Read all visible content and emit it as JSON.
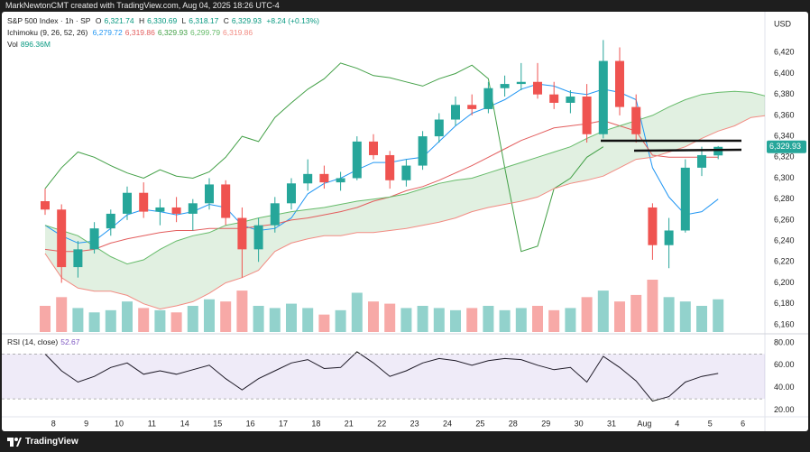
{
  "header": {
    "credit": "MarkNewtonCMT created with TradingView.com, Aug 04, 2025 18:26 UTC-4"
  },
  "footer": {
    "brand": "TradingView"
  },
  "chart_data": [
    {
      "type": "candlestick",
      "title": "S&P 500 Index · 1h · SP",
      "currency": "USD",
      "legend": {
        "o": "O",
        "open": "6,321.74",
        "h": "H",
        "high": "6,330.69",
        "l": "L",
        "low": "6,318.17",
        "c": "C",
        "close": "6,329.93",
        "change": "+8.24 (+0.13%)"
      },
      "indicator": "Ichimoku (9, 26, 52, 26)",
      "up_color": "#26a69a",
      "down_color": "#ef5350",
      "ylim": [
        6153,
        6453
      ],
      "yticks": [
        {
          "value": 6160,
          "label": "6,160"
        },
        {
          "value": 6180,
          "label": "6,180"
        },
        {
          "value": 6200,
          "label": "6,200"
        },
        {
          "value": 6220,
          "label": "6,220"
        },
        {
          "value": 6240,
          "label": "6,240"
        },
        {
          "value": 6260,
          "label": "6,260"
        },
        {
          "value": 6280,
          "label": "6,280"
        },
        {
          "value": 6300,
          "label": "6,300"
        },
        {
          "value": 6320,
          "label": "6,320"
        },
        {
          "value": 6340,
          "label": "6,340"
        },
        {
          "value": 6360,
          "label": "6,360"
        },
        {
          "value": 6380,
          "label": "6,380"
        },
        {
          "value": 6400,
          "label": "6,400"
        },
        {
          "value": 6420,
          "label": "6,420"
        }
      ],
      "open": [
        6278,
        6270,
        6215,
        6232,
        6252,
        6266,
        6286,
        6268,
        6272,
        6266,
        6276,
        6294,
        6262,
        6232,
        6255,
        6276,
        6295,
        6304,
        6296,
        6300,
        6335,
        6322,
        6298,
        6312,
        6340,
        6356,
        6370,
        6366,
        6386,
        6390,
        6392,
        6380,
        6372,
        6378,
        6342,
        6412,
        6368,
        6272,
        6236,
        6250,
        6310,
        6321.74,
        null,
        null,
        null
      ],
      "high": [
        6290,
        6275,
        6240,
        6258,
        6270,
        6292,
        6296,
        6280,
        6282,
        6280,
        6300,
        6298,
        6272,
        6262,
        6282,
        6300,
        6318,
        6312,
        6306,
        6340,
        6342,
        6326,
        6318,
        6345,
        6362,
        6378,
        6380,
        6392,
        6398,
        6410,
        6410,
        6392,
        6384,
        6390,
        6432,
        6425,
        6380,
        6276,
        6262,
        6318,
        6330,
        6330.69,
        null,
        null,
        null
      ],
      "low": [
        6265,
        6200,
        6205,
        6228,
        6245,
        6260,
        6262,
        6255,
        6258,
        6250,
        6270,
        6255,
        6205,
        6220,
        6248,
        6270,
        6288,
        6290,
        6288,
        6298,
        6318,
        6290,
        6292,
        6308,
        6334,
        6350,
        6360,
        6362,
        6378,
        6384,
        6376,
        6366,
        6362,
        6334,
        6338,
        6360,
        6334,
        6222,
        6214,
        6248,
        6302,
        6318.17,
        null,
        null,
        null
      ],
      "close": [
        6270,
        6215,
        6232,
        6252,
        6266,
        6286,
        6268,
        6272,
        6266,
        6276,
        6294,
        6262,
        6232,
        6255,
        6276,
        6295,
        6304,
        6296,
        6300,
        6335,
        6322,
        6298,
        6312,
        6340,
        6356,
        6370,
        6366,
        6386,
        6390,
        6392,
        6380,
        6372,
        6378,
        6342,
        6412,
        6368,
        6342,
        6236,
        6250,
        6310,
        6322,
        6329.93,
        null,
        null,
        null
      ],
      "volume": {
        "name": "Vol",
        "value_label": "896.36M",
        "values": [
          60,
          80,
          55,
          45,
          50,
          70,
          55,
          50,
          45,
          60,
          75,
          70,
          95,
          60,
          55,
          65,
          55,
          40,
          50,
          90,
          70,
          65,
          55,
          60,
          55,
          50,
          55,
          60,
          50,
          55,
          60,
          50,
          55,
          80,
          95,
          70,
          85,
          120,
          80,
          70,
          60,
          75,
          null,
          null,
          null
        ]
      },
      "cloud_color": "rgba(67,160,71,0.16)",
      "series": [
        {
          "color": "#2196f3",
          "value_label": "6,279.72",
          "values": [
            6255,
            6245,
            6238,
            6240,
            6252,
            6265,
            6270,
            6268,
            6265,
            6268,
            6275,
            6272,
            6255,
            6250,
            6252,
            6262,
            6285,
            6295,
            6300,
            6308,
            6315,
            6315,
            6318,
            6320,
            6335,
            6350,
            6362,
            6368,
            6375,
            6385,
            6390,
            6388,
            6382,
            6380,
            6385,
            6382,
            6375,
            6310,
            6282,
            6265,
            6268,
            6280,
            null,
            null,
            null
          ]
        },
        {
          "color": "#e35d5d",
          "value_label": "6,319.86",
          "values": [
            6232,
            6230,
            6230,
            6232,
            6238,
            6242,
            6245,
            6248,
            6250,
            6250,
            6252,
            6252,
            6252,
            6254,
            6256,
            6260,
            6262,
            6265,
            6268,
            6272,
            6278,
            6282,
            6288,
            6292,
            6298,
            6305,
            6312,
            6320,
            6328,
            6336,
            6342,
            6348,
            6350,
            6352,
            6355,
            6350,
            6345,
            6322,
            6320,
            6320,
            6320,
            6320,
            null,
            null,
            null
          ]
        },
        {
          "color": "#43a047",
          "value_label": "6,329.93",
          "values": [
            6290,
            6310,
            6325,
            6320,
            6312,
            6305,
            6300,
            6308,
            6302,
            6300,
            6306,
            6320,
            6340,
            6335,
            6358,
            6372,
            6385,
            6395,
            6410,
            6405,
            6398,
            6396,
            6392,
            6388,
            6395,
            6400,
            6408,
            6395,
            6310,
            6230,
            6235,
            6290,
            6300,
            6320,
            6330,
            null,
            null,
            null,
            null,
            null,
            null,
            null,
            null,
            null,
            null
          ]
        },
        {
          "color": "#66bb6a",
          "value_label": "6,299.79",
          "values": [
            6255,
            6250,
            6245,
            6235,
            6225,
            6218,
            6222,
            6232,
            6240,
            6245,
            6248,
            6255,
            6258,
            6262,
            6265,
            6268,
            6270,
            6272,
            6275,
            6278,
            6280,
            6282,
            6285,
            6290,
            6295,
            6298,
            6300,
            6305,
            6310,
            6315,
            6320,
            6325,
            6330,
            6338,
            6345,
            6350,
            6355,
            6360,
            6368,
            6375,
            6380,
            6382,
            6383,
            6382,
            6378
          ]
        },
        {
          "color": "#f28b82",
          "value_label": "6,319.86",
          "values": [
            6228,
            6205,
            6195,
            6192,
            6192,
            6188,
            6180,
            6175,
            6178,
            6182,
            6190,
            6200,
            6205,
            6212,
            6230,
            6238,
            6242,
            6245,
            6245,
            6248,
            6248,
            6250,
            6252,
            6255,
            6258,
            6262,
            6268,
            6272,
            6275,
            6278,
            6282,
            6290,
            6295,
            6298,
            6302,
            6310,
            6318,
            6320,
            6325,
            6330,
            6338,
            6345,
            6350,
            6358,
            6360
          ]
        }
      ]
    },
    {
      "type": "line",
      "title": "RSI (14, close)",
      "last_label": "52.67",
      "color": "#7e57c2",
      "band": [
        30,
        70
      ],
      "band_color": "rgba(126,87,194,0.12)",
      "ylim": [
        14,
        88
      ],
      "yticks": [
        {
          "value": 20,
          "label": "20.00"
        },
        {
          "value": 40,
          "label": "40.00"
        },
        {
          "value": 60,
          "label": "60.00"
        },
        {
          "value": 80,
          "label": "80.00"
        }
      ],
      "categories": [
        null,
        "8",
        null,
        "9",
        null,
        "10",
        null,
        "11",
        null,
        "14",
        null,
        "15",
        null,
        "16",
        null,
        "17",
        null,
        "18",
        null,
        "21",
        null,
        "22",
        null,
        "23",
        null,
        "24",
        null,
        "25",
        null,
        "28",
        null,
        "29",
        null,
        "30",
        null,
        "31",
        null,
        "Aug",
        null,
        "4",
        null,
        "5",
        null,
        "6",
        null
      ],
      "values": [
        70,
        55,
        45,
        50,
        58,
        62,
        52,
        55,
        52,
        56,
        60,
        48,
        38,
        48,
        55,
        62,
        65,
        57,
        58,
        72,
        62,
        50,
        55,
        62,
        66,
        64,
        60,
        64,
        66,
        65,
        60,
        56,
        58,
        45,
        68,
        58,
        46,
        28,
        32,
        45,
        50,
        52.67,
        null,
        null,
        null
      ]
    }
  ]
}
